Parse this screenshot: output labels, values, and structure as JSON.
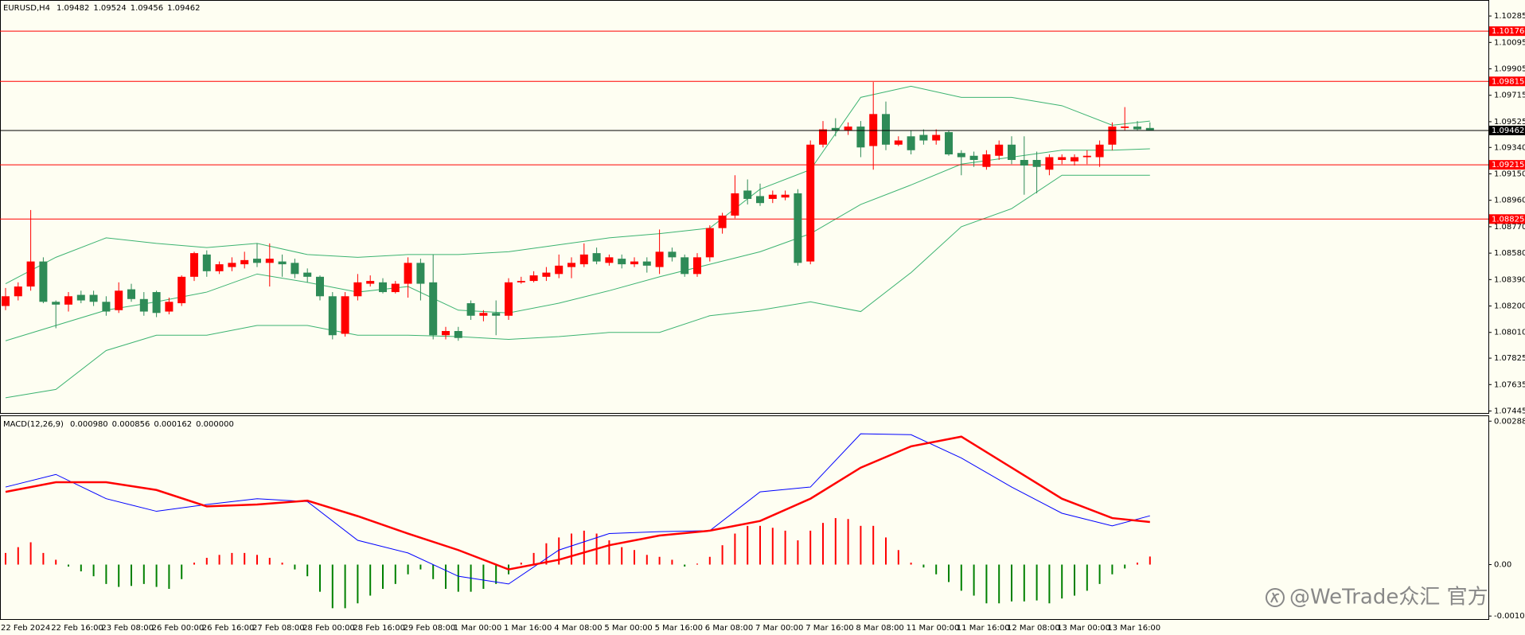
{
  "chart_data": [
    {
      "type": "candlestick",
      "title": "EURUSD,H4",
      "title_values": [
        1.09482,
        1.09524,
        1.09456,
        1.09462
      ],
      "open": [
        1.082,
        1.0827,
        1.0834,
        1.0852,
        1.0823,
        1.0821,
        1.0828,
        1.0828,
        1.0823,
        1.0817,
        1.0832,
        1.0825,
        1.083,
        1.0816,
        1.0822,
        1.0841,
        1.0857,
        1.0845,
        1.0848,
        1.085,
        1.0854,
        1.0851,
        1.0852,
        1.0851,
        1.0844,
        1.0841,
        1.0827,
        1.08,
        1.0827,
        1.0836,
        1.0837,
        1.083,
        1.0836,
        1.0851,
        1.0837,
        1.0799,
        1.0802,
        1.0822,
        1.0813,
        1.0815,
        1.0813,
        1.0837,
        1.0838,
        1.0841,
        1.0843,
        1.0848,
        1.085,
        1.0858,
        1.0851,
        1.0854,
        1.085,
        1.0852,
        1.0848,
        1.0859,
        1.0855,
        1.0843,
        1.0855,
        1.0876,
        1.0885,
        1.0903,
        1.0899,
        1.0897,
        1.0898,
        1.0901,
        1.0852,
        1.0936,
        1.0948,
        1.0946,
        1.0949,
        1.0935,
        1.0958,
        1.0936,
        1.0942,
        1.0943,
        1.0939,
        1.0945,
        1.093,
        1.0928,
        1.092,
        1.0928,
        1.0936,
        1.0925,
        1.0925,
        1.0918,
        1.0925,
        1.0924,
        1.0927,
        1.0927,
        1.0936,
        1.0948,
        1.0949,
        1.0948
      ],
      "high": [
        1.0833,
        1.0837,
        1.0889,
        1.0855,
        1.0824,
        1.083,
        1.0831,
        1.0831,
        1.0827,
        1.0837,
        1.0836,
        1.083,
        1.0831,
        1.0826,
        1.0842,
        1.0859,
        1.086,
        1.0852,
        1.0855,
        1.0859,
        1.0865,
        1.0865,
        1.0857,
        1.0854,
        1.0847,
        1.0842,
        1.083,
        1.083,
        1.0843,
        1.0842,
        1.084,
        1.0838,
        1.0855,
        1.0854,
        1.0857,
        1.0805,
        1.0805,
        1.0824,
        1.0817,
        1.0824,
        1.084,
        1.0841,
        1.0845,
        1.0848,
        1.0857,
        1.0855,
        1.0865,
        1.0862,
        1.0857,
        1.0857,
        1.0855,
        1.0855,
        1.0875,
        1.0862,
        1.0857,
        1.0858,
        1.0878,
        1.0887,
        1.0914,
        1.0911,
        1.0908,
        1.0903,
        1.0903,
        1.0904,
        1.0939,
        1.0953,
        1.0955,
        1.0952,
        1.0953,
        1.0981,
        1.0967,
        1.0942,
        1.0946,
        1.0947,
        1.0947,
        1.0946,
        1.0932,
        1.0931,
        1.0932,
        1.0939,
        1.0942,
        1.0942,
        1.0931,
        1.0929,
        1.0929,
        1.0929,
        1.0932,
        1.0939,
        1.0952,
        1.0963,
        1.0953,
        1.0952
      ],
      "low": [
        1.0817,
        1.0824,
        1.0831,
        1.0822,
        1.0804,
        1.0816,
        1.0822,
        1.082,
        1.0813,
        1.0815,
        1.0823,
        1.0813,
        1.0812,
        1.0814,
        1.082,
        1.0838,
        1.0841,
        1.0843,
        1.0845,
        1.0847,
        1.0848,
        1.0834,
        1.0841,
        1.084,
        1.0837,
        1.0824,
        1.0796,
        1.0798,
        1.0824,
        1.0834,
        1.0829,
        1.0829,
        1.0826,
        1.0824,
        1.0796,
        1.0796,
        1.0795,
        1.081,
        1.0809,
        1.0799,
        1.081,
        1.0836,
        1.0837,
        1.0838,
        1.084,
        1.084,
        1.0848,
        1.085,
        1.0849,
        1.0847,
        1.0848,
        1.0844,
        1.0843,
        1.0852,
        1.0841,
        1.0841,
        1.0852,
        1.0872,
        1.0883,
        1.0893,
        1.0892,
        1.0894,
        1.0896,
        1.0849,
        1.085,
        1.0934,
        1.0942,
        1.0943,
        1.0927,
        1.0918,
        1.0932,
        1.0935,
        1.0929,
        1.0936,
        1.0936,
        1.0928,
        1.0914,
        1.092,
        1.0918,
        1.0925,
        1.0922,
        1.09,
        1.0901,
        1.0914,
        1.0922,
        1.0921,
        1.0922,
        1.092,
        1.0932,
        1.0946,
        1.0946,
        1.0946
      ],
      "close": [
        1.0827,
        1.0834,
        1.0852,
        1.0823,
        1.0821,
        1.0827,
        1.0824,
        1.0823,
        1.0816,
        1.0831,
        1.0825,
        1.0816,
        1.0815,
        1.0823,
        1.0841,
        1.0858,
        1.0845,
        1.085,
        1.0851,
        1.0853,
        1.0851,
        1.0854,
        1.085,
        1.0843,
        1.0841,
        1.0827,
        1.0799,
        1.0827,
        1.0837,
        1.0838,
        1.083,
        1.0836,
        1.0851,
        1.0836,
        1.0799,
        1.0802,
        1.0797,
        1.0813,
        1.0815,
        1.0813,
        1.0837,
        1.0838,
        1.0842,
        1.0844,
        1.0849,
        1.0851,
        1.0857,
        1.0852,
        1.0855,
        1.085,
        1.0852,
        1.0849,
        1.0859,
        1.0855,
        1.0843,
        1.0855,
        1.0876,
        1.0885,
        1.0901,
        1.0897,
        1.0894,
        1.09,
        1.09,
        1.0851,
        1.0936,
        1.0947,
        1.0946,
        1.0949,
        1.0934,
        1.0958,
        1.0936,
        1.0939,
        1.0932,
        1.0939,
        1.0943,
        1.0929,
        1.0927,
        1.0925,
        1.0929,
        1.0936,
        1.0925,
        1.0921,
        1.092,
        1.0927,
        1.0927,
        1.0927,
        1.0928,
        1.0936,
        1.0949,
        1.0949,
        1.0947,
        1.0946
      ],
      "up_color": "#ff0000",
      "down_color": "#2e8b57",
      "band_x": [
        0,
        4,
        8,
        12,
        16,
        20,
        24,
        28,
        32,
        36,
        40,
        44,
        48,
        52,
        56,
        60,
        64,
        68,
        72,
        76,
        80,
        84,
        88,
        91
      ],
      "bands": [
        {
          "color": "#3cb371",
          "values": [
            1.0836,
            1.0855,
            1.0869,
            1.0865,
            1.0862,
            1.0865,
            1.0857,
            1.0855,
            1.0857,
            1.0857,
            1.0859,
            1.0864,
            1.0869,
            1.0872,
            1.0876,
            1.0904,
            1.0918,
            1.097,
            1.0978,
            1.097,
            1.097,
            1.0964,
            1.095,
            1.0953
          ]
        },
        {
          "color": "#3cb371",
          "values": [
            1.0795,
            1.0806,
            1.0817,
            1.0823,
            1.083,
            1.0843,
            1.0837,
            1.083,
            1.0834,
            1.0817,
            1.0815,
            1.0822,
            1.0831,
            1.0841,
            1.085,
            1.0859,
            1.0872,
            1.0893,
            1.0907,
            1.0922,
            1.0927,
            1.0932,
            1.0932,
            1.0933
          ]
        },
        {
          "color": "#3cb371",
          "values": [
            1.0754,
            1.076,
            1.0788,
            1.0799,
            1.0799,
            1.0806,
            1.0806,
            1.0799,
            1.0799,
            1.0798,
            1.0796,
            1.0798,
            1.0801,
            1.0801,
            1.0813,
            1.0817,
            1.0823,
            1.0816,
            1.0844,
            1.0877,
            1.089,
            1.0914,
            1.0914,
            1.0914
          ]
        }
      ],
      "levels": [
        1.10176,
        1.09815,
        1.09215,
        1.08825
      ],
      "level_color": "#ff0000",
      "last_price": 1.09462,
      "last_price_color": "#000000",
      "ylim": [
        1.07425,
        1.104
      ],
      "yticks": [
        1.10285,
        1.10095,
        1.09905,
        1.09715,
        1.09525,
        {
          "value": 1.0934,
          "label": "1.09340"
        },
        {
          "value": 1.0915,
          "label": "1.09150"
        },
        {
          "value": 1.0896,
          "label": "1.08960"
        },
        {
          "value": 1.0877,
          "label": "1.08770"
        },
        {
          "value": 1.0858,
          "label": "1.08580"
        },
        {
          "value": 1.0839,
          "label": "1.08390"
        },
        {
          "value": 1.082,
          "label": "1.08200"
        },
        {
          "value": 1.0801,
          "label": "1.08010"
        },
        1.07825,
        1.07635,
        1.07445
      ]
    },
    {
      "type": "macd",
      "title": "MACD(12,26,9)",
      "title_values": [
        "0.000980",
        "0.000856",
        "0.000162",
        "0.000000"
      ],
      "categories": [
        "22 Feb 2024",
        null,
        null,
        null,
        "22 Feb 16:00",
        null,
        null,
        null,
        "23 Feb 08:00",
        null,
        null,
        null,
        "26 Feb 00:00",
        null,
        null,
        null,
        "26 Feb 16:00",
        null,
        null,
        null,
        "27 Feb 08:00",
        null,
        null,
        null,
        "28 Feb 00:00",
        null,
        null,
        null,
        "28 Feb 16:00",
        null,
        null,
        null,
        "29 Feb 08:00",
        null,
        null,
        null,
        "1 Mar 00:00",
        null,
        null,
        null,
        "1 Mar 16:00",
        null,
        null,
        null,
        "4 Mar 08:00",
        null,
        null,
        null,
        "5 Mar 00:00",
        null,
        null,
        null,
        "5 Mar 16:00",
        null,
        null,
        null,
        "6 Mar 08:00",
        null,
        null,
        null,
        "7 Mar 00:00",
        null,
        null,
        null,
        "7 Mar 16:00",
        null,
        null,
        null,
        "8 Mar 08:00",
        null,
        null,
        null,
        "11 Mar 00:00",
        null,
        null,
        null,
        "11 Mar 16:00",
        null,
        null,
        null,
        "12 Mar 08:00",
        null,
        null,
        null,
        "13 Mar 00:00",
        null,
        null,
        null,
        "13 Mar 16:00",
        null,
        null,
        null
      ],
      "histogram": {
        "up_color": "#ff0000",
        "down_color": "#008000",
        "values": [
          0.000234,
          0.00035,
          0.000448,
          0.000234,
          9.7e-05,
          -3.9e-05,
          -0.000136,
          -0.000234,
          -0.000389,
          -0.000448,
          -0.000428,
          -0.000389,
          -0.000448,
          -0.000487,
          -0.000292,
          3.9e-05,
          0.000136,
          0.000195,
          0.000234,
          0.000234,
          0.000195,
          0.000136,
          3.9e-05,
          -9.7e-05,
          -0.000234,
          -0.000545,
          -0.000876,
          -0.000876,
          -0.000778,
          -0.000623,
          -0.000487,
          -0.000389,
          -0.000195,
          -9.7e-05,
          -0.000292,
          -0.000487,
          -0.000545,
          -0.000545,
          -0.000487,
          -0.000389,
          -0.000195,
          3.9e-05,
          0.000234,
          0.000428,
          0.000545,
          0.000623,
          0.000681,
          0.000623,
          0.000487,
          0.00035,
          0.000292,
          0.000195,
          0.000156,
          9.7e-05,
          -3.9e-05,
          1.9e-05,
          0.000156,
          0.000389,
          0.000623,
          0.000778,
          0.000778,
          0.000739,
          0.000681,
          0.000487,
          0.000681,
          0.000837,
          0.000934,
          0.000915,
          0.000778,
          0.000778,
          0.000545,
          0.000292,
          3.9e-05,
          -5.8e-05,
          -0.000195,
          -0.00035,
          -0.000525,
          -0.000623,
          -0.000778,
          -0.000778,
          -0.000739,
          -0.000739,
          -0.00072,
          -0.000778,
          -0.000681,
          -0.000623,
          -0.000525,
          -0.000389,
          -0.000195,
          -7.8e-05,
          3.9e-05,
          0.000162
        ]
      },
      "x": [
        0,
        4,
        8,
        12,
        16,
        20,
        24,
        28,
        32,
        36,
        40,
        44,
        48,
        52,
        56,
        60,
        64,
        68,
        72,
        76,
        80,
        84,
        88,
        91
      ],
      "series": [
        {
          "color": "#0000ff",
          "values": [
            0.001557,
            0.00181,
            0.001323,
            0.00107,
            0.001207,
            0.001323,
            0.001265,
            0.000487,
            0.000234,
            -0.000234,
            -0.000389,
            0.000292,
            0.000623,
            0.000662,
            0.000681,
            0.00146,
            0.001557,
            0.002627,
            0.002608,
            0.002141,
            0.001557,
            0.001031,
            0.000778,
            0.00098
          ]
        },
        {
          "color": "#ff0000",
          "values": [
            0.00146,
            0.001654,
            0.001654,
            0.001498,
            0.001168,
            0.001207,
            0.001284,
            0.000973,
            0.000623,
            0.000292,
            -9.7e-05,
            9.7e-05,
            0.000389,
            0.000584,
            0.000681,
            0.000876,
            0.001323,
            0.001946,
            0.002374,
            0.002569,
            0.001946,
            0.001323,
            0.000934,
            0.000856
          ]
        }
      ],
      "ylim": [
        -0.00111,
        0.00298
      ],
      "yticks": [
        0.00288,
        {
          "value": 0,
          "label": "0.00"
        },
        -0.001033
      ]
    }
  ],
  "watermark": "@WeTrade众汇 官方"
}
